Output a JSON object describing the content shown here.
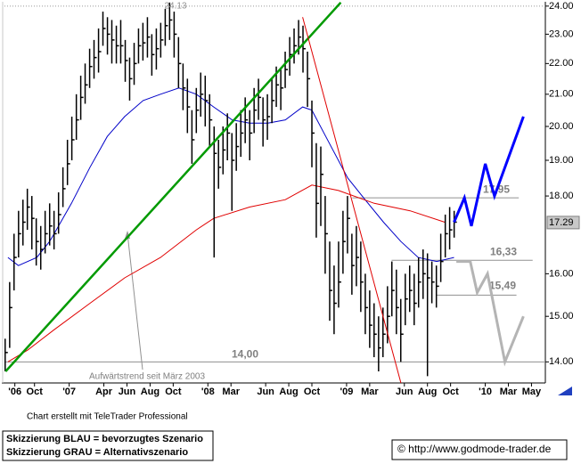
{
  "chart_data": {
    "type": "ohlc",
    "log_scale": true,
    "xlim": [
      6.4,
      53.2
    ],
    "ylim": [
      13.56,
      24.06
    ],
    "yticks": [
      {
        "value": 14,
        "label": "14.00"
      },
      {
        "value": 15,
        "label": "15.00"
      },
      {
        "value": 16,
        "label": "16.00"
      },
      {
        "value": 18,
        "label": "18.00"
      },
      {
        "value": 19,
        "label": "19.00"
      },
      {
        "value": 20,
        "label": "20.00"
      },
      {
        "value": 21,
        "label": "21.00"
      },
      {
        "value": 22,
        "label": "22.00"
      },
      {
        "value": 23,
        "label": "23.00"
      },
      {
        "value": 24,
        "label": "24.00"
      }
    ],
    "xticks": [
      {
        "value": 7.3,
        "label": "'06"
      },
      {
        "value": 9,
        "label": "Oct"
      },
      {
        "value": 12,
        "label": "'07"
      },
      {
        "value": 15,
        "label": "Apr"
      },
      {
        "value": 17,
        "label": "Jun"
      },
      {
        "value": 19,
        "label": "Aug"
      },
      {
        "value": 21,
        "label": "Oct"
      },
      {
        "value": 24,
        "label": "'08"
      },
      {
        "value": 26,
        "label": "Mar"
      },
      {
        "value": 29,
        "label": "Jun"
      },
      {
        "value": 31,
        "label": "Aug"
      },
      {
        "value": 33,
        "label": "Oct"
      },
      {
        "value": 36,
        "label": "'09"
      },
      {
        "value": 38,
        "label": "Mar"
      },
      {
        "value": 41,
        "label": "Jun"
      },
      {
        "value": 43,
        "label": "Aug"
      },
      {
        "value": 45,
        "label": "Oct"
      },
      {
        "value": 48,
        "label": "'10"
      },
      {
        "value": 50,
        "label": "Mar"
      },
      {
        "value": 52,
        "label": "May"
      }
    ],
    "last": {
      "value": 17.29,
      "label": "17.29"
    },
    "peak": {
      "value": 24.13,
      "label": "24.13"
    },
    "price_color": "#000000",
    "x": [
      6.46,
      6.85,
      7.23,
      7.62,
      8.0,
      8.38,
      8.77,
      9.15,
      9.54,
      9.92,
      10.31,
      10.69,
      11.08,
      11.46,
      11.85,
      12.23,
      12.62,
      13.0,
      13.38,
      13.77,
      14.15,
      14.54,
      14.92,
      15.31,
      15.69,
      16.08,
      16.46,
      16.85,
      17.23,
      17.62,
      18.0,
      18.38,
      18.77,
      19.15,
      19.54,
      19.92,
      20.31,
      20.69,
      21.08,
      21.46,
      21.85,
      22.23,
      22.62,
      23.0,
      23.38,
      23.77,
      24.15,
      24.54,
      24.92,
      25.31,
      25.69,
      26.08,
      26.46,
      26.85,
      27.23,
      27.62,
      28.0,
      28.38,
      28.77,
      29.15,
      29.54,
      29.92,
      30.31,
      30.69,
      31.08,
      31.46,
      31.85,
      32.23,
      32.62,
      33.0,
      33.38,
      33.77,
      34.15,
      34.54,
      34.92,
      35.31,
      35.69,
      36.08,
      36.46,
      36.85,
      37.23,
      37.62,
      38.0,
      38.38,
      38.77,
      39.15,
      39.54,
      39.92,
      40.31,
      40.69,
      41.08,
      41.46,
      41.85,
      42.23,
      42.62,
      43.0,
      43.38,
      43.77,
      44.15,
      44.54,
      44.92,
      45.31
    ],
    "high": [
      14.5,
      15.8,
      17.0,
      17.6,
      17.9,
      18.2,
      18.0,
      17.4,
      17.2,
      17.6,
      17.8,
      17.6,
      18.1,
      18.8,
      19.6,
      20.3,
      21.0,
      21.6,
      22.0,
      22.5,
      22.8,
      23.2,
      23.8,
      23.6,
      23.5,
      23.3,
      23.5,
      22.8,
      22.2,
      22.7,
      23.2,
      23.4,
      23.6,
      23.0,
      23.2,
      23.4,
      23.9,
      24.13,
      23.8,
      22.9,
      22.0,
      21.5,
      20.5,
      21.2,
      21.7,
      21.6,
      21.0,
      20.0,
      19.6,
      20.0,
      20.4,
      19.8,
      20.1,
      20.5,
      20.9,
      20.5,
      21.2,
      21.5,
      20.9,
      21.0,
      21.5,
      21.9,
      21.8,
      22.4,
      22.9,
      23.2,
      23.5,
      23.3,
      22.4,
      20.8,
      19.5,
      19.4,
      18.0,
      16.8,
      16.2,
      16.8,
      17.6,
      18.0,
      17.0,
      17.2,
      16.8,
      16.0,
      15.6,
      15.3,
      15.0,
      15.2,
      15.7,
      16.3,
      16.1,
      15.4,
      16.0,
      16.2,
      16.0,
      16.4,
      16.6,
      16.5,
      16.3,
      16.2,
      17.0,
      17.5,
      17.7,
      17.6
    ],
    "low": [
      13.8,
      14.3,
      15.6,
      16.4,
      16.7,
      17.1,
      16.6,
      16.2,
      16.1,
      16.5,
      16.7,
      16.6,
      17.0,
      17.7,
      18.3,
      19.0,
      19.6,
      20.2,
      20.7,
      21.2,
      21.5,
      21.7,
      22.6,
      22.3,
      22.0,
      22.0,
      22.0,
      21.4,
      20.8,
      21.3,
      22.0,
      22.1,
      22.2,
      21.6,
      21.8,
      22.2,
      22.6,
      22.8,
      22.2,
      21.2,
      20.5,
      19.8,
      18.9,
      19.8,
      20.3,
      20.0,
      19.4,
      16.4,
      18.2,
      18.6,
      19.0,
      17.6,
      18.7,
      19.1,
      19.5,
      19.0,
      19.8,
      20.2,
      19.4,
      19.6,
      20.1,
      20.6,
      20.5,
      21.2,
      21.6,
      22.0,
      22.3,
      21.7,
      20.6,
      18.8,
      16.9,
      17.2,
      16.0,
      14.9,
      14.6,
      15.2,
      16.0,
      16.5,
      15.5,
      15.7,
      15.1,
      14.6,
      14.3,
      14.1,
      13.8,
      14.1,
      14.4,
      15.0,
      14.6,
      14.0,
      14.8,
      15.1,
      14.8,
      15.2,
      15.4,
      13.7,
      15.3,
      15.2,
      15.8,
      16.4,
      16.6,
      16.9
    ],
    "close": [
      14.2,
      15.2,
      16.4,
      17.0,
      17.3,
      17.7,
      17.4,
      16.8,
      16.6,
      17.0,
      17.2,
      17.0,
      17.5,
      18.2,
      18.9,
      19.6,
      20.2,
      20.9,
      21.3,
      21.9,
      22.2,
      22.4,
      23.2,
      23.0,
      22.8,
      22.6,
      22.6,
      22.1,
      21.5,
      22.0,
      22.6,
      22.7,
      22.9,
      22.3,
      22.5,
      22.8,
      23.3,
      23.5,
      23.0,
      22.0,
      21.2,
      20.6,
      19.6,
      20.5,
      21.0,
      20.8,
      20.2,
      19.2,
      18.8,
      19.3,
      19.8,
      19.0,
      19.4,
      19.8,
      20.2,
      19.8,
      20.5,
      20.9,
      20.2,
      20.3,
      20.8,
      21.3,
      21.2,
      21.8,
      22.3,
      22.6,
      22.9,
      22.5,
      21.5,
      19.8,
      17.8,
      18.6,
      17.0,
      15.6,
      15.3,
      15.8,
      16.8,
      17.4,
      16.2,
      16.4,
      15.8,
      15.2,
      14.8,
      14.6,
      14.3,
      14.6,
      15.0,
      15.6,
      15.2,
      14.6,
      15.4,
      15.6,
      15.3,
      15.8,
      16.0,
      15.9,
      15.8,
      15.7,
      16.3,
      17.0,
      17.1,
      17.3
    ],
    "lines": [
      {
        "color": "#0000c8",
        "width": 1,
        "x": [
          6.7,
          7.6,
          9.2,
          10.3,
          10.7,
          12.2,
          13.8,
          15.3,
          16.8,
          18.4,
          19.9,
          21.5,
          23.0,
          24.5,
          26.1,
          27.6,
          29.2,
          30.7,
          32.2,
          33.0,
          34.5,
          36.1,
          37.6,
          39.2,
          40.7,
          42.2,
          43.8,
          45.3
        ],
        "values": [
          16.4,
          16.2,
          16.4,
          16.8,
          17.0,
          17.8,
          18.8,
          19.7,
          20.3,
          20.8,
          21.0,
          21.2,
          21.0,
          20.6,
          20.2,
          20.1,
          20.1,
          20.2,
          20.6,
          20.5,
          19.5,
          18.5,
          17.9,
          17.3,
          16.8,
          16.4,
          16.3,
          16.4
        ]
      },
      {
        "color": "#e00000",
        "width": 1,
        "x": [
          6.7,
          8.4,
          10.7,
          13.8,
          16.8,
          19.9,
          23.0,
          24.5,
          27.6,
          30.7,
          33.0,
          35.3,
          38.4,
          41.5,
          44.5
        ],
        "values": [
          14.0,
          14.25,
          14.7,
          15.3,
          15.9,
          16.4,
          17.1,
          17.4,
          17.7,
          17.9,
          18.3,
          18.15,
          17.8,
          17.6,
          17.3
        ]
      },
      {
        "color": "#009a00",
        "width": 2.5,
        "x": [
          6.5,
          35.5
        ],
        "values": [
          13.8,
          24.13
        ]
      },
      {
        "color": "#e00000",
        "width": 1,
        "x": [
          32.2,
          40.7
        ],
        "values": [
          23.6,
          13.56
        ]
      },
      {
        "color": "#0000ff",
        "width": 3,
        "x": [
          45.3,
          46.2,
          46.8,
          48.0,
          48.8,
          51.3
        ],
        "values": [
          17.3,
          17.95,
          17.2,
          18.9,
          18.0,
          20.3
        ]
      },
      {
        "color": "#b4b4b4",
        "width": 3,
        "x": [
          45.5,
          46.7,
          47.3,
          48.2,
          49.7,
          51.3
        ],
        "values": [
          16.3,
          16.3,
          15.55,
          16.0,
          14.0,
          15.0
        ]
      }
    ],
    "levels": [
      {
        "value": 17.95,
        "label": "17,95",
        "xrange": [
          36.5,
          50.9
        ]
      },
      {
        "value": 16.33,
        "label": "16,33",
        "xrange": [
          39.9,
          52.1
        ]
      },
      {
        "value": 15.49,
        "label": "15,49",
        "xrange": [
          43.8,
          50.7
        ]
      },
      {
        "value": 14.0,
        "label": "14,00",
        "xrange": [
          6.4,
          53.2
        ]
      }
    ],
    "annotation": "Aufwärtstrend seit März 2003"
  },
  "footer": {
    "credit": "Chart erstellt mit TeleTrader Professional",
    "legend_lines": [
      "Skizzierung BLAU = bevorzugtes Szenario",
      "Skizzierung GRAU = Alternativszenario"
    ],
    "copyright": "© http://www.godmode-trader.de"
  }
}
